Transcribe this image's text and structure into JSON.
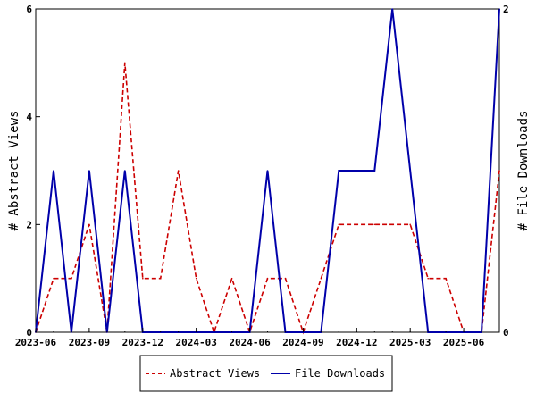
{
  "chart_data": {
    "type": "line",
    "x": [
      "2023-06",
      "2023-07",
      "2023-08",
      "2023-09",
      "2023-10",
      "2023-11",
      "2023-12",
      "2024-01",
      "2024-02",
      "2024-03",
      "2024-04",
      "2024-05",
      "2024-06",
      "2024-07",
      "2024-08",
      "2024-09",
      "2024-10",
      "2024-11",
      "2024-12",
      "2025-01",
      "2025-02",
      "2025-03",
      "2025-04",
      "2025-05",
      "2025-06",
      "2025-07",
      "2025-08"
    ],
    "x_ticks": [
      "2023-06",
      "2023-09",
      "2023-12",
      "2024-03",
      "2024-06",
      "2024-09",
      "2024-12",
      "2025-03",
      "2025-06"
    ],
    "y_left": {
      "label": "# Abstract Views",
      "range": [
        0,
        6
      ],
      "ticks": [
        "0",
        "2",
        "4",
        "6"
      ]
    },
    "y_right": {
      "label": "# File Downloads",
      "range": [
        0,
        2
      ],
      "ticks": [
        "0",
        "2"
      ]
    },
    "grid": false,
    "legend_position": "bottom",
    "series": [
      {
        "name": "Abstract Views",
        "axis": "left",
        "color": "#cc0000",
        "style": "dashed",
        "values": [
          0,
          1,
          1,
          2,
          0,
          5,
          1,
          1,
          3,
          1,
          0,
          1,
          0,
          1,
          1,
          0,
          1,
          2,
          2,
          2,
          2,
          2,
          1,
          1,
          0,
          0,
          3
        ]
      },
      {
        "name": "File Downloads",
        "axis": "right",
        "color": "#0000aa",
        "style": "solid",
        "values": [
          0,
          1,
          0,
          1,
          0,
          1,
          0,
          0,
          0,
          0,
          0,
          0,
          0,
          1,
          0,
          0,
          0,
          1,
          1,
          1,
          2,
          1,
          0,
          0,
          0,
          0,
          2
        ]
      }
    ]
  }
}
